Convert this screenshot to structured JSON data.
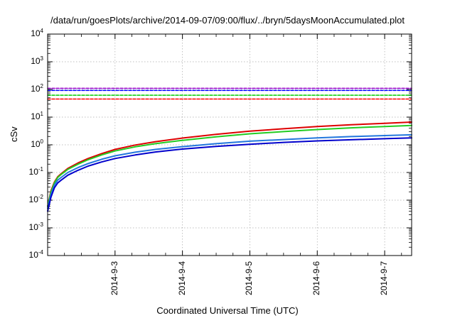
{
  "chart_data": {
    "type": "line",
    "title": "/data/run/goesPlots/archive/2014-09-07/09:00/flux/../bryn/5daysMoonAccumulated.plot",
    "xlabel": "Coordinated Universal Time (UTC)",
    "ylabel": "cSv",
    "yscale": "log",
    "ylim": [
      0.0001,
      10000
    ],
    "xlim": [
      2.0,
      7.4
    ],
    "grid": true,
    "x_unit": "day of September 2014",
    "yticks": [
      {
        "base": "10",
        "exp": "4",
        "value": 10000
      },
      {
        "base": "10",
        "exp": "3",
        "value": 1000
      },
      {
        "base": "10",
        "exp": "2",
        "value": 100
      },
      {
        "base": "10",
        "exp": "1",
        "value": 10
      },
      {
        "base": "10",
        "exp": "0",
        "value": 1
      },
      {
        "base": "10",
        "exp": "-1",
        "value": 0.1
      },
      {
        "base": "10",
        "exp": "-2",
        "value": 0.01
      },
      {
        "base": "10",
        "exp": "-3",
        "value": 0.001
      },
      {
        "base": "10",
        "exp": "-4",
        "value": 0.0001
      }
    ],
    "xticks": [
      {
        "label": "2014-9-3",
        "value": 3
      },
      {
        "label": "2014-9-4",
        "value": 4
      },
      {
        "label": "2014-9-5",
        "value": 5
      },
      {
        "label": "2014-9-6",
        "value": 6
      },
      {
        "label": "2014-9-7",
        "value": 7
      }
    ],
    "series": [
      {
        "color": "#dd0000",
        "width": 2,
        "dashed": false,
        "x": [
          2.0,
          2.05,
          2.1,
          2.15,
          2.2,
          2.3,
          2.45,
          2.6,
          2.8,
          3.0,
          3.3,
          3.6,
          4.0,
          4.5,
          5.0,
          5.5,
          6.0,
          6.5,
          7.0,
          7.4
        ],
        "y": [
          0.006,
          0.022,
          0.045,
          0.07,
          0.09,
          0.14,
          0.22,
          0.32,
          0.48,
          0.68,
          0.98,
          1.3,
          1.75,
          2.4,
          3.1,
          3.8,
          4.6,
          5.3,
          6.0,
          6.6
        ]
      },
      {
        "color": "#22cc22",
        "width": 2,
        "dashed": false,
        "x": [
          2.0,
          2.05,
          2.1,
          2.15,
          2.2,
          2.3,
          2.45,
          2.6,
          2.8,
          3.0,
          3.3,
          3.6,
          4.0,
          4.5,
          5.0,
          5.5,
          6.0,
          6.5,
          7.0,
          7.4
        ],
        "y": [
          0.006,
          0.02,
          0.042,
          0.066,
          0.085,
          0.13,
          0.2,
          0.29,
          0.43,
          0.6,
          0.85,
          1.1,
          1.45,
          1.95,
          2.5,
          3.0,
          3.55,
          4.1,
          4.6,
          5.0
        ]
      },
      {
        "color": "#2277dd",
        "width": 2,
        "dashed": false,
        "x": [
          2.0,
          2.05,
          2.1,
          2.15,
          2.2,
          2.3,
          2.45,
          2.6,
          2.8,
          3.0,
          3.3,
          3.6,
          4.0,
          4.5,
          5.0,
          5.5,
          6.0,
          6.5,
          7.0,
          7.4
        ],
        "y": [
          0.005,
          0.016,
          0.035,
          0.053,
          0.066,
          0.1,
          0.15,
          0.21,
          0.3,
          0.4,
          0.54,
          0.68,
          0.86,
          1.1,
          1.35,
          1.55,
          1.78,
          1.98,
          2.15,
          2.3
        ]
      },
      {
        "color": "#0000cc",
        "width": 2,
        "dashed": false,
        "x": [
          2.0,
          2.05,
          2.1,
          2.15,
          2.2,
          2.3,
          2.45,
          2.6,
          2.8,
          3.0,
          3.3,
          3.6,
          4.0,
          4.5,
          5.0,
          5.5,
          6.0,
          6.5,
          7.0,
          7.4
        ],
        "y": [
          0.004,
          0.013,
          0.028,
          0.042,
          0.053,
          0.08,
          0.12,
          0.17,
          0.24,
          0.32,
          0.43,
          0.55,
          0.7,
          0.88,
          1.05,
          1.22,
          1.38,
          1.52,
          1.66,
          1.77
        ]
      },
      {
        "color": "#9900cc",
        "width": 1.5,
        "dashed": true,
        "x": [
          2.0,
          7.4
        ],
        "y": [
          110,
          110
        ]
      },
      {
        "color": "#0000ff",
        "width": 1.5,
        "dashed": true,
        "x": [
          2.0,
          7.4
        ],
        "y": [
          92,
          92
        ]
      },
      {
        "color": "#00cc00",
        "width": 1.5,
        "dashed": true,
        "x": [
          2.0,
          7.4
        ],
        "y": [
          62,
          62
        ]
      },
      {
        "color": "#ff0000",
        "width": 1.5,
        "dashed": true,
        "x": [
          2.0,
          7.4
        ],
        "y": [
          45,
          45
        ]
      }
    ]
  }
}
